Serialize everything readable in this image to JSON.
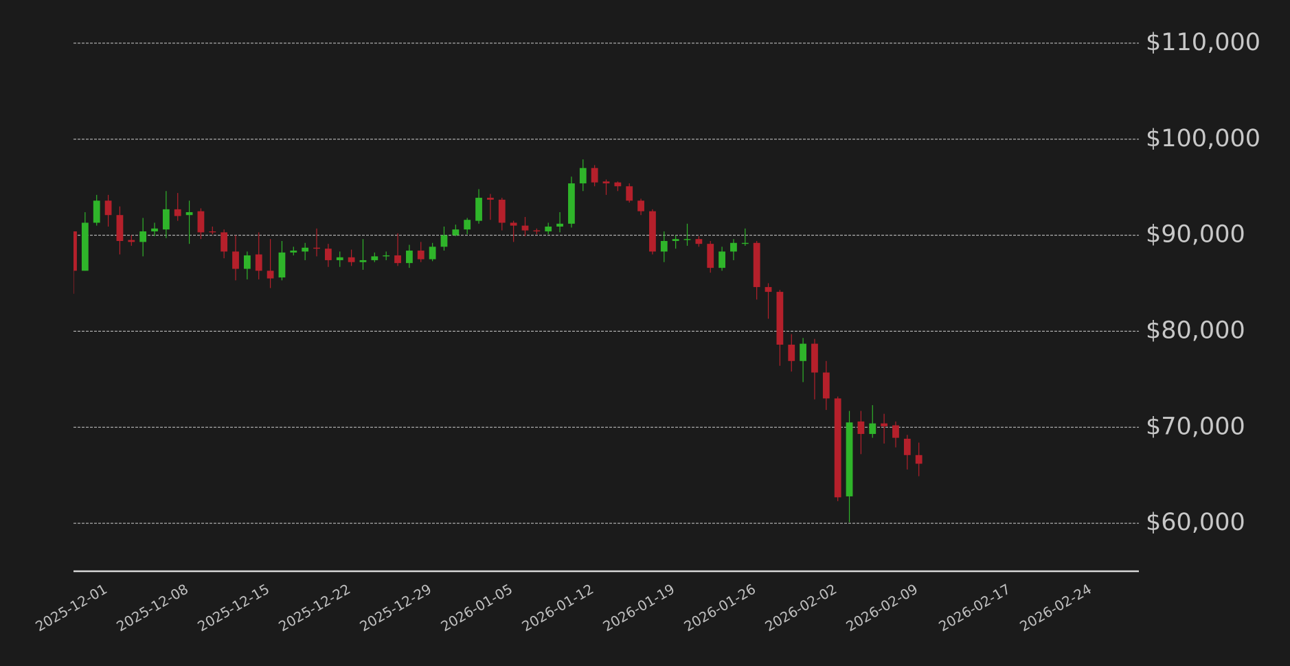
{
  "chart_data": {
    "type": "candlestick",
    "x": [
      "2025-11-28",
      "2025-11-29",
      "2025-11-30",
      "2025-12-01",
      "2025-12-02",
      "2025-12-03",
      "2025-12-04",
      "2025-12-05",
      "2025-12-06",
      "2025-12-07",
      "2025-12-08",
      "2025-12-09",
      "2025-12-10",
      "2025-12-11",
      "2025-12-12",
      "2025-12-13",
      "2025-12-14",
      "2025-12-15",
      "2025-12-16",
      "2025-12-17",
      "2025-12-18",
      "2025-12-19",
      "2025-12-20",
      "2025-12-21",
      "2025-12-22",
      "2025-12-23",
      "2025-12-24",
      "2025-12-25",
      "2025-12-26",
      "2025-12-27",
      "2025-12-28",
      "2025-12-29",
      "2025-12-30",
      "2025-12-31",
      "2026-01-01",
      "2026-01-02",
      "2026-01-03",
      "2026-01-04",
      "2026-01-05",
      "2026-01-06",
      "2026-01-07",
      "2026-01-08",
      "2026-01-09",
      "2026-01-10",
      "2026-01-11",
      "2026-01-12",
      "2026-01-13",
      "2026-01-14",
      "2026-01-15",
      "2026-01-16",
      "2026-01-17",
      "2026-01-18",
      "2026-01-19",
      "2026-01-20",
      "2026-01-21",
      "2026-01-22",
      "2026-01-23",
      "2026-01-24",
      "2026-01-25",
      "2026-01-26",
      "2026-01-27",
      "2026-01-28",
      "2026-01-29",
      "2026-01-30",
      "2026-01-31",
      "2026-02-01",
      "2026-02-02",
      "2026-02-03",
      "2026-02-04",
      "2026-02-05",
      "2026-02-06",
      "2026-02-07",
      "2026-02-08",
      "2026-02-09"
    ],
    "open": [
      90400,
      86300,
      91300,
      93600,
      92100,
      89500,
      89300,
      90400,
      90600,
      92700,
      92100,
      92500,
      90400,
      90300,
      88300,
      86500,
      88000,
      86300,
      85600,
      88200,
      88300,
      88700,
      88600,
      87400,
      87700,
      87200,
      87400,
      87800,
      87900,
      87100,
      88400,
      87500,
      88800,
      90000,
      90600,
      91500,
      93900,
      93700,
      91300,
      91000,
      90500,
      90400,
      90900,
      91200,
      95400,
      97000,
      95600,
      95500,
      95100,
      93600,
      92500,
      88300,
      89400,
      89500,
      89600,
      89100,
      86600,
      88300,
      89100,
      89200,
      84600,
      84100,
      78600,
      76900,
      78700,
      75700,
      73000,
      62800,
      70600,
      69300,
      70400,
      70200,
      68800,
      67100
    ],
    "high": [
      90400,
      92400,
      94200,
      94200,
      93000,
      90000,
      91800,
      91300,
      94600,
      94400,
      93600,
      92800,
      90900,
      90600,
      90000,
      88300,
      90300,
      89600,
      89400,
      88800,
      89200,
      90700,
      89100,
      88300,
      88500,
      89600,
      88200,
      88300,
      90200,
      89000,
      89300,
      89200,
      90900,
      91100,
      91800,
      94800,
      94300,
      93900,
      91500,
      91900,
      90700,
      91300,
      92400,
      96100,
      97900,
      97300,
      95800,
      95600,
      95400,
      93800,
      92700,
      90400,
      90000,
      91200,
      89900,
      89400,
      88800,
      89600,
      90700,
      89400,
      85000,
      84300,
      79700,
      79300,
      79200,
      76900,
      73200,
      71700,
      71700,
      72300,
      71400,
      70600,
      69200,
      68400
    ],
    "low": [
      83900,
      86300,
      91000,
      90900,
      88000,
      88900,
      87800,
      89900,
      89700,
      91500,
      89100,
      89600,
      90100,
      87600,
      85300,
      85400,
      85400,
      84500,
      85300,
      87900,
      87400,
      87800,
      86700,
      86700,
      86800,
      86400,
      87200,
      87400,
      86800,
      86600,
      87200,
      87300,
      88400,
      89900,
      90100,
      91200,
      91600,
      90500,
      89300,
      89900,
      90100,
      90100,
      90300,
      90800,
      94600,
      95100,
      94200,
      94600,
      93400,
      92100,
      88000,
      87200,
      88600,
      88900,
      88800,
      86100,
      86300,
      87400,
      88900,
      83300,
      81300,
      76400,
      75800,
      74700,
      72900,
      71800,
      62300,
      60100,
      67200,
      68900,
      68300,
      67900,
      65600,
      64900
    ],
    "close": [
      86300,
      91300,
      93600,
      92100,
      89400,
      89300,
      90400,
      90700,
      92700,
      92000,
      92400,
      90300,
      90300,
      88300,
      86500,
      87900,
      86300,
      85500,
      88200,
      88400,
      88700,
      88600,
      87400,
      87700,
      87200,
      87400,
      87800,
      87900,
      87100,
      88400,
      87500,
      88800,
      90000,
      90600,
      91600,
      93900,
      93700,
      91300,
      91000,
      90500,
      90400,
      90900,
      91200,
      95400,
      97000,
      95500,
      95400,
      95100,
      93600,
      92500,
      88300,
      89400,
      89600,
      89600,
      89100,
      86600,
      88300,
      89200,
      89200,
      84600,
      84100,
      78600,
      76900,
      78700,
      75700,
      73000,
      62700,
      70500,
      69300,
      70400,
      70100,
      68900,
      67100,
      66200
    ],
    "up_color": "#2fb52a",
    "down_color": "#b5202b",
    "xlim": [
      "2025-11-28",
      "2026-02-28"
    ],
    "xticks": [
      "2025-12-01",
      "2025-12-08",
      "2025-12-15",
      "2025-12-22",
      "2025-12-29",
      "2026-01-05",
      "2026-01-12",
      "2026-01-19",
      "2026-01-26",
      "2026-02-02",
      "2026-02-09",
      "2026-02-17",
      "2026-02-24"
    ],
    "ylim": [
      55000,
      114500
    ],
    "yticks": [
      {
        "value": 60000,
        "label": "$60,000"
      },
      {
        "value": 70000,
        "label": "$70,000"
      },
      {
        "value": 80000,
        "label": "$80,000"
      },
      {
        "value": 90000,
        "label": "$90,000"
      },
      {
        "value": 100000,
        "label": "$100,000"
      },
      {
        "value": 110000,
        "label": "$110,000"
      }
    ],
    "grid": true
  }
}
